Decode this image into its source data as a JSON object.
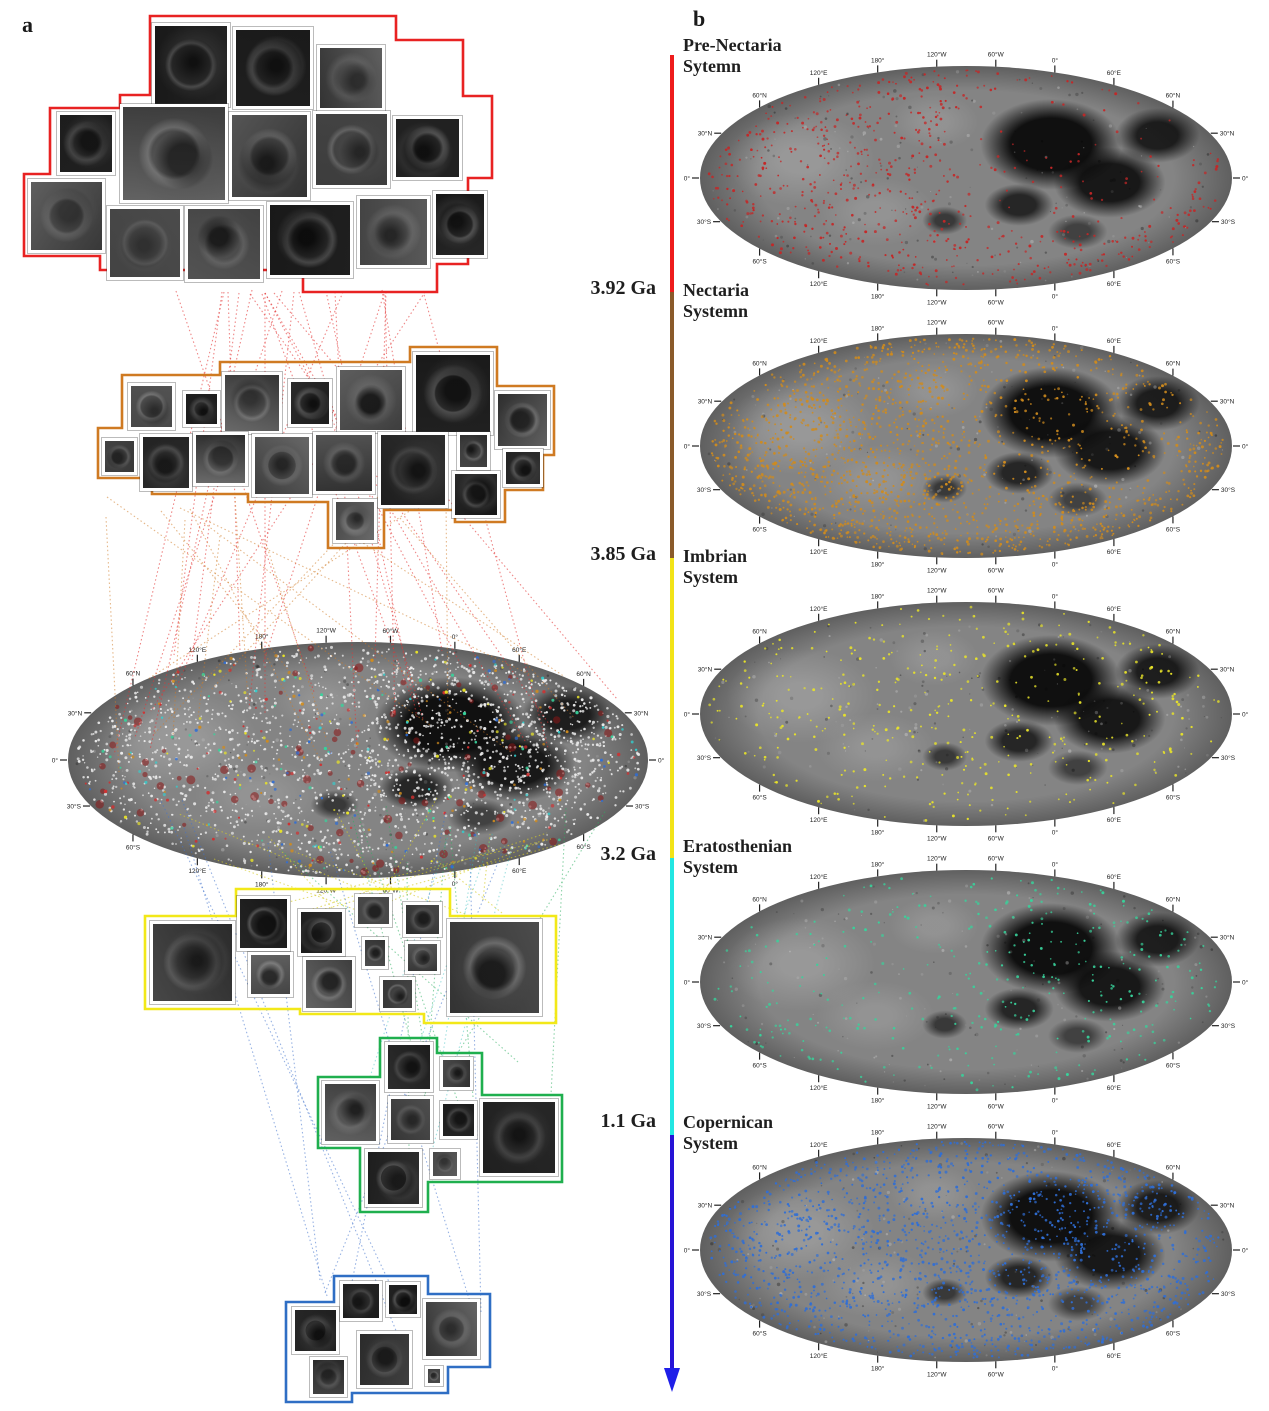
{
  "figure": {
    "panel_a_label": "a",
    "panel_b_label": "b"
  },
  "timeline": {
    "ages": [
      "3.92 Ga",
      "3.85 Ga",
      "3.2 Ga",
      "1.1 Ga"
    ],
    "segment_colors": [
      "#ee1c1c",
      "#8a5a2a",
      "#f2e318",
      "#22e6e2",
      "#2613d6"
    ],
    "arrow_color": "#1f1fe8"
  },
  "systems": [
    {
      "name": "Pre-Nectaria Sytemn",
      "marker_color": "#c42727",
      "marker_count": 640,
      "tile_count": 14,
      "outline_color": "#e82222"
    },
    {
      "name": "Nectaria Systemn",
      "marker_color": "#cf8b1e",
      "marker_count": 1750,
      "tile_count": 17,
      "outline_color": "#cf7a22"
    },
    {
      "name": "Imbrian System",
      "marker_color": "#e8e329",
      "marker_count": 400,
      "tile_count": 11,
      "outline_color": "#f2e818"
    },
    {
      "name": "Eratosthenian System",
      "marker_color": "#38d29b",
      "marker_count": 360,
      "tile_count": 8,
      "outline_color": "#1faf4e"
    },
    {
      "name": "Copernican System",
      "marker_color": "#2f6ed6",
      "marker_count": 1750,
      "tile_count": 7,
      "outline_color": "#2f6ec4"
    }
  ],
  "map_axes": {
    "top_tick_labels": [
      "60°N",
      "120°E",
      "180°",
      "120°W",
      "60°W",
      "0°",
      "60°E",
      "60°N"
    ],
    "bottom_tick_labels": [
      "60°S",
      "120°E",
      "180°",
      "120°W",
      "60°W",
      "0°",
      "60°E",
      "60°S"
    ],
    "side_tick_labels": [
      "30°N",
      "0°",
      "30°S"
    ]
  },
  "combined_map": {
    "marker_colors": [
      "#ebebeb",
      "#c9c9d6",
      "#8a1515",
      "#d03030",
      "#cf8b1e",
      "#e8e329",
      "#38d29b",
      "#2f6ed6",
      "#33cfcf"
    ]
  }
}
